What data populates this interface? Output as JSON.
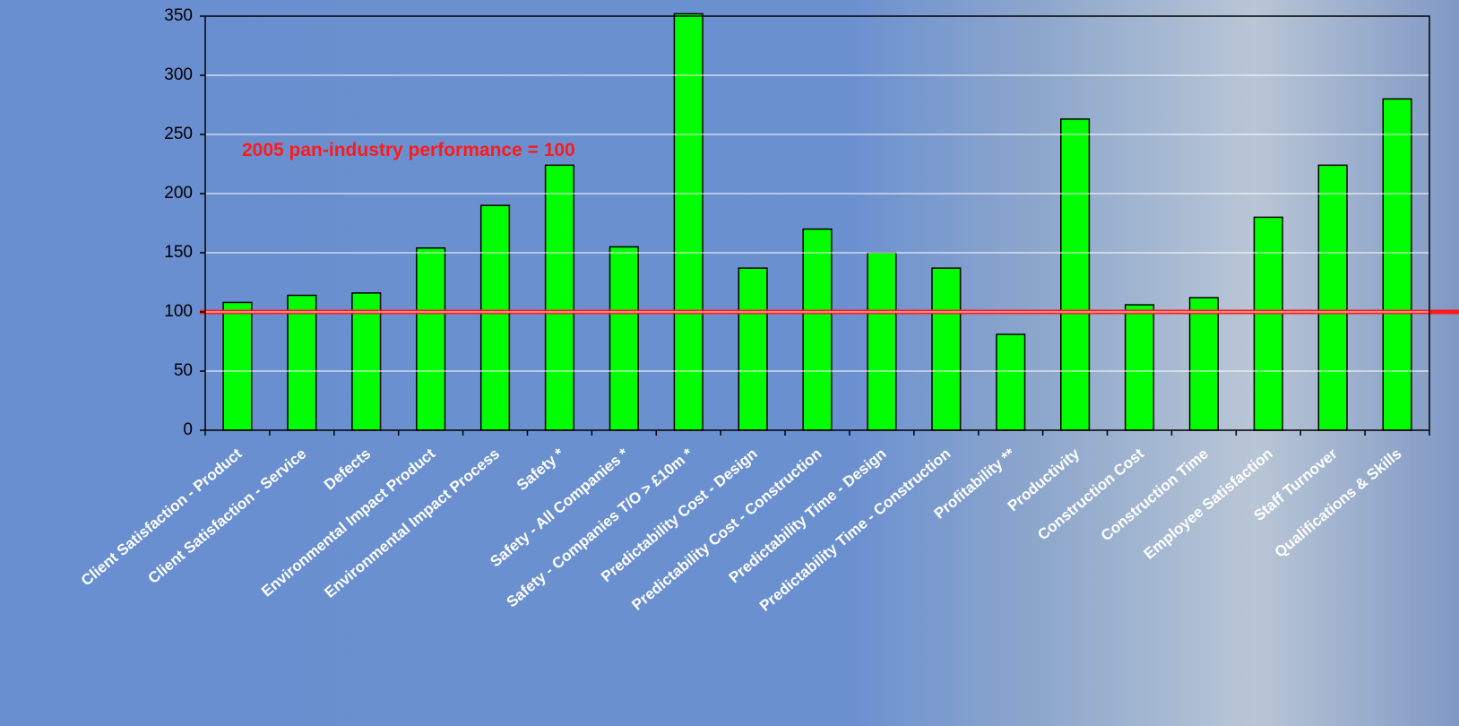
{
  "chart_data": {
    "type": "bar",
    "categories": [
      "Client Satisfaction - Product",
      "Client Satisfaction - Service",
      "Defects",
      "Environmental Impact Product",
      "Environmental Impact Process",
      "Safety *",
      "Safety - All Companies *",
      "Safety - Companies T/O > £10m *",
      "Predictability Cost - Design",
      "Predictability Cost - Construction",
      "Predictability Time - Design",
      "Predictability Time - Construction",
      "Profitability **",
      "Productivity",
      "Construction Cost",
      "Construction Time",
      "Employee Satisfaction",
      "Staff Turnover",
      "Qualifications & Skills"
    ],
    "values": [
      108,
      114,
      116,
      154,
      190,
      224,
      155,
      352,
      137,
      170,
      150,
      137,
      81,
      263,
      106,
      112,
      180,
      224,
      280
    ],
    "color": "#00ff00",
    "ylim": [
      0,
      350
    ],
    "yticks": [
      0,
      50,
      100,
      150,
      200,
      250,
      300,
      350
    ],
    "grid": true,
    "annotation": "2005 pan-industry performance = 100",
    "reference_line": {
      "value": 100,
      "color": "#ff1a1a"
    }
  }
}
